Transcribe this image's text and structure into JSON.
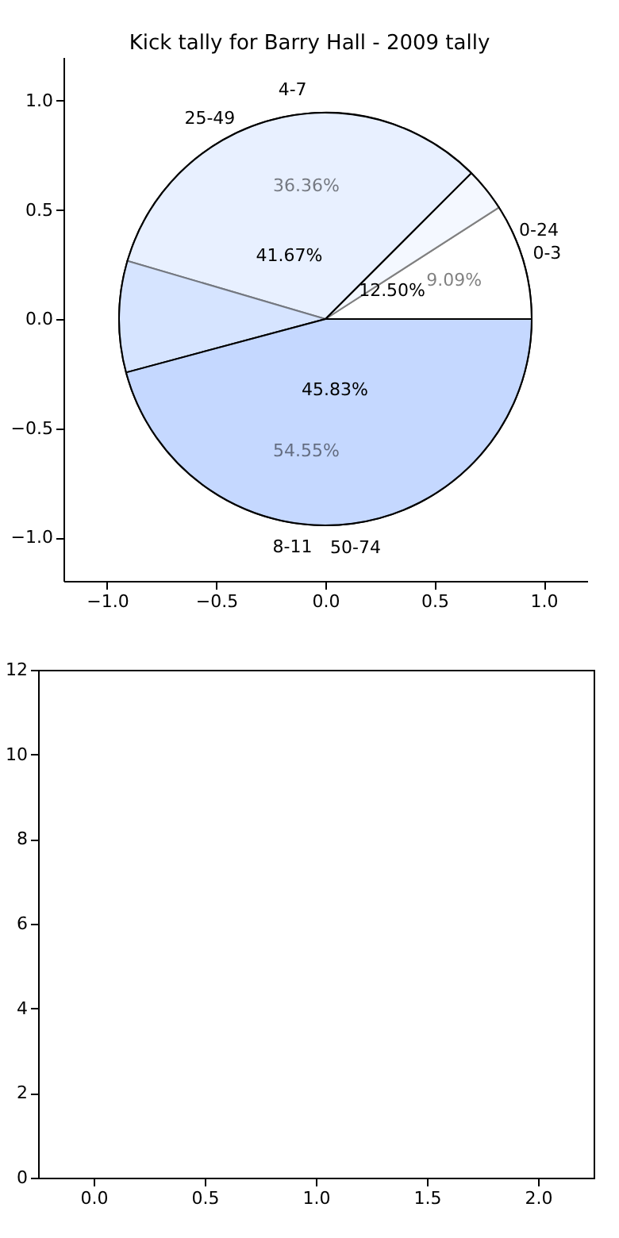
{
  "chart_data": [
    {
      "type": "scatter",
      "title": "Kick tally for Barry Hall - 2009 tally",
      "xlim": [
        -1.2,
        1.2
      ],
      "ylim": [
        -1.2,
        1.2
      ],
      "xticks": [
        {
          "value": -1,
          "label": "−1.0"
        },
        {
          "value": -0.5,
          "label": "−0.5"
        },
        {
          "value": 0,
          "label": "0.0"
        },
        {
          "value": 0.5,
          "label": "0.5"
        },
        {
          "value": 1,
          "label": "1.0"
        }
      ],
      "yticks": [
        {
          "value": -1,
          "label": "−1.0"
        },
        {
          "value": -0.5,
          "label": "−0.5"
        },
        {
          "value": 0,
          "label": "0.0"
        },
        {
          "value": 0.5,
          "label": "0.5"
        },
        {
          "value": 1,
          "label": "1.0"
        }
      ]
    },
    {
      "type": "pie",
      "categories": [
        "0-3",
        "4-7",
        "8-11"
      ],
      "values": [
        9.09,
        36.36,
        54.55
      ],
      "value_labels": [
        "9.09%",
        "36.36%",
        "54.55%"
      ],
      "colors": [
        "#ffffff",
        "#e8f0ff",
        "#c5d8ff"
      ]
    },
    {
      "type": "pie",
      "categories": [
        "0-24",
        "25-49",
        "50-74"
      ],
      "values": [
        12.5,
        41.67,
        45.83
      ],
      "value_labels": [
        "12.50%",
        "41.67%",
        "45.83%"
      ],
      "colors": [
        "#ffffff",
        "#e8f0ff",
        "#c5d8ff"
      ]
    },
    {
      "type": "scatter",
      "xlim": [
        -0.25,
        2.25
      ],
      "ylim": [
        0,
        12
      ],
      "xticks": [
        {
          "value": 0,
          "label": "0.0"
        },
        {
          "value": 0.5,
          "label": "0.5"
        },
        {
          "value": 1,
          "label": "1.0"
        },
        {
          "value": 1.5,
          "label": "1.5"
        },
        {
          "value": 2,
          "label": "2.0"
        }
      ],
      "yticks": [
        0,
        2,
        4,
        6,
        8,
        10,
        12
      ]
    }
  ]
}
